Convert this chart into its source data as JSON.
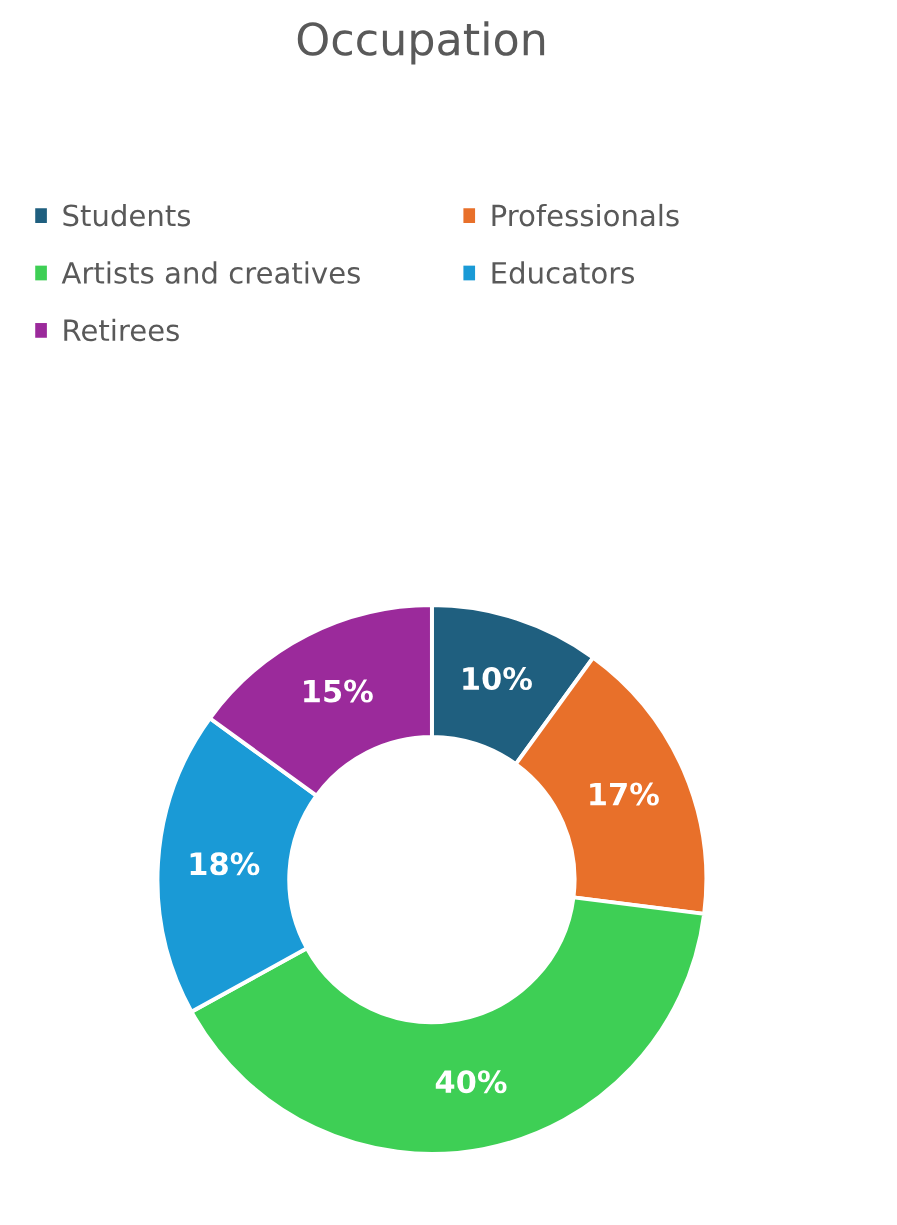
{
  "chart_data": {
    "type": "donut",
    "title": "Occupation",
    "categories": [
      "Students",
      "Professionals",
      "Artists and creatives",
      "Educators",
      "Retirees"
    ],
    "values": [
      10,
      17,
      40,
      18,
      15
    ],
    "colors": [
      "#1f5f7f",
      "#e8702a",
      "#3ecf55",
      "#1a9ad6",
      "#9b2a9b"
    ],
    "value_labels": [
      "10%",
      "17%",
      "40%",
      "18%",
      "15%"
    ],
    "legend": "top"
  }
}
